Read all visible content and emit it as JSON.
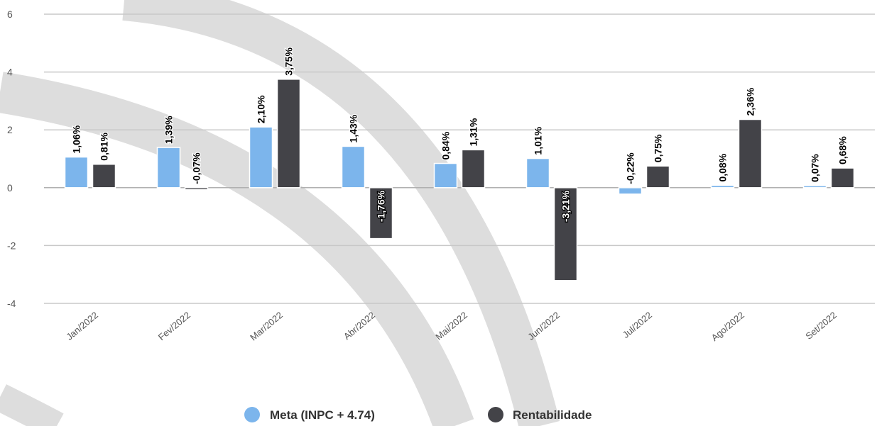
{
  "chart_data": {
    "type": "bar",
    "categories": [
      "Jan/2022",
      "Fev/2022",
      "Mar/2022",
      "Abr/2022",
      "Mai/2022",
      "Jun/2022",
      "Jul/2022",
      "Ago/2022",
      "Set/2022"
    ],
    "series": [
      {
        "name": "Meta (INPC + 4.74)",
        "color": "#7cb5ec",
        "values": [
          1.06,
          1.39,
          2.1,
          1.43,
          0.84,
          1.01,
          -0.22,
          0.08,
          0.07
        ],
        "labels": [
          "1,06%",
          "1,39%",
          "2,10%",
          "1,43%",
          "0,84%",
          "1,01%",
          "-0,22%",
          "0,08%",
          "0,07%"
        ]
      },
      {
        "name": "Rentabilidade",
        "color": "#434348",
        "values": [
          0.81,
          -0.07,
          3.75,
          -1.76,
          1.31,
          -3.21,
          0.75,
          2.36,
          0.68
        ],
        "labels": [
          "0,81%",
          "-0,07%",
          "3,75%",
          "-1,76%",
          "1,31%",
          "-3,21%",
          "0,75%",
          "2,36%",
          "0,68%"
        ]
      }
    ],
    "yticks": [
      "6",
      "4",
      "2",
      "0",
      "-2",
      "-4"
    ],
    "ytick_values": [
      6,
      4,
      2,
      0,
      -2,
      -4
    ],
    "ylim": [
      -4,
      6
    ],
    "grid": true,
    "legend": "bottom-center",
    "title": "",
    "xlabel": "",
    "ylabel": ""
  }
}
